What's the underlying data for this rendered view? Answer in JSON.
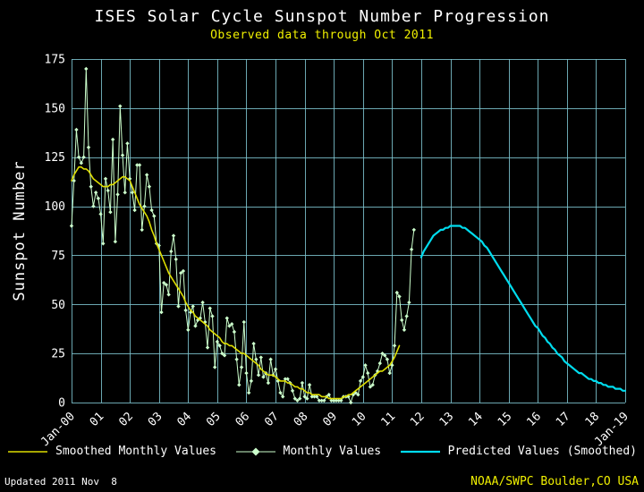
{
  "colors": {
    "background": "#000000",
    "grid": "#7ec4d0",
    "title_text": "#ffffff",
    "subtitle_text": "#f0f000",
    "axis_text": "#ffffff",
    "smoothed": "#dede00",
    "monthly": "#ccffcc",
    "predicted": "#00dcee",
    "credit_text": "#f0f000",
    "updated_text": "#ffffff"
  },
  "footer": {
    "updated": "Updated 2011 Nov  8",
    "credit": "NOAA/SWPC Boulder,CO USA"
  },
  "chart_data": {
    "type": "line",
    "title": "ISES Solar Cycle Sunspot Number Progression",
    "subtitle": "Observed data through Oct 2011",
    "xlabel": "",
    "ylabel": "Sunspot Number",
    "ylim": [
      0,
      175
    ],
    "y_ticks": [
      0,
      25,
      50,
      75,
      100,
      125,
      150,
      175
    ],
    "x_start_year": 2000,
    "x_end_year": 2019,
    "x_tick_labels": [
      "Jan-00",
      "01",
      "02",
      "03",
      "04",
      "05",
      "06",
      "07",
      "08",
      "09",
      "10",
      "11",
      "12",
      "13",
      "14",
      "15",
      "16",
      "17",
      "18",
      "Jan-19"
    ],
    "grid": true,
    "legend_position": "bottom",
    "series": [
      {
        "name": "Monthly Values",
        "key": "monthly",
        "start": "2000-01",
        "markers": true,
        "values": [
          90,
          113,
          139,
          125,
          122,
          125,
          170,
          130,
          110,
          100,
          107,
          104,
          96,
          81,
          114,
          108,
          97,
          134,
          82,
          106,
          151,
          126,
          107,
          132,
          114,
          107,
          98,
          121,
          121,
          88,
          100,
          116,
          110,
          98,
          95,
          81,
          80,
          46,
          61,
          60,
          55,
          77,
          85,
          73,
          49,
          66,
          67,
          47,
          37,
          46,
          49,
          39,
          42,
          43,
          51,
          41,
          28,
          48,
          44,
          18,
          31,
          29,
          25,
          24,
          43,
          39,
          40,
          36,
          22,
          9,
          18,
          41,
          15,
          5,
          11,
          30,
          22,
          14,
          23,
          13,
          15,
          10,
          22,
          14,
          17,
          11,
          5,
          3,
          12,
          12,
          10,
          6,
          2,
          1,
          2,
          10,
          3,
          2,
          9,
          3,
          3,
          3,
          1,
          1,
          1,
          3,
          4,
          1,
          1,
          1,
          1,
          1,
          3,
          3,
          3,
          0,
          4,
          5,
          4,
          11,
          13,
          19,
          15,
          8,
          9,
          14,
          16,
          20,
          25,
          24,
          22,
          15,
          19,
          29,
          56,
          54,
          42,
          37,
          44,
          51,
          78,
          88
        ]
      },
      {
        "name": "Smoothed Monthly Values",
        "key": "smoothed",
        "start": "2000-01",
        "markers": false,
        "values": [
          113,
          116,
          118,
          120,
          120,
          119,
          119,
          118,
          116,
          114,
          113,
          112,
          111,
          110,
          110,
          110,
          111,
          111,
          112,
          113,
          114,
          115,
          115,
          114,
          113,
          110,
          107,
          104,
          101,
          99,
          97,
          95,
          92,
          88,
          85,
          81,
          78,
          75,
          72,
          69,
          66,
          64,
          62,
          60,
          58,
          56,
          54,
          51,
          49,
          47,
          46,
          44,
          43,
          42,
          41,
          40,
          39,
          37,
          36,
          35,
          34,
          33,
          31,
          30,
          30,
          29,
          29,
          28,
          27,
          26,
          25,
          25,
          24,
          23,
          22,
          21,
          20,
          19,
          17,
          16,
          15,
          14,
          14,
          14,
          13,
          12,
          11,
          11,
          11,
          10,
          10,
          9,
          8,
          8,
          7,
          7,
          6,
          5,
          5,
          4,
          4,
          4,
          4,
          3,
          3,
          3,
          2,
          2,
          2,
          2,
          2,
          2,
          3,
          3,
          4,
          4,
          5,
          6,
          7,
          8,
          9,
          10,
          11,
          12,
          13,
          14,
          15,
          16,
          16,
          17,
          18,
          19,
          21,
          23,
          26,
          29
        ]
      },
      {
        "name": "Predicted Values (Smoothed)",
        "key": "predicted",
        "start": "2012-01",
        "markers": false,
        "values": [
          74,
          77,
          79,
          81,
          83,
          85,
          86,
          87,
          88,
          88,
          89,
          89,
          90,
          90,
          90,
          90,
          90,
          89,
          89,
          88,
          87,
          86,
          85,
          84,
          83,
          82,
          80,
          79,
          77,
          75,
          73,
          71,
          69,
          67,
          65,
          63,
          61,
          59,
          57,
          55,
          53,
          51,
          49,
          47,
          45,
          43,
          41,
          39,
          38,
          36,
          34,
          33,
          31,
          30,
          28,
          27,
          25,
          24,
          23,
          21,
          20,
          19,
          18,
          17,
          16,
          15,
          15,
          14,
          13,
          12,
          12,
          11,
          11,
          10,
          10,
          9,
          9,
          8,
          8,
          8,
          7,
          7,
          7,
          6,
          6
        ]
      }
    ]
  }
}
